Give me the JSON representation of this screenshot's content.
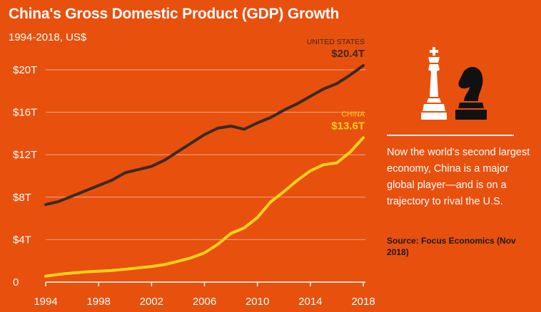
{
  "header": {
    "title": "China's Gross Domestic Product (GDP) Growth",
    "subtitle": "1994-2018, US$"
  },
  "sidebar": {
    "blurb": "Now the world's second largest economy, China is a major global player—and is on a trajectory to rival the U.S.",
    "source": "Source: Focus Economics (Nov 2018)",
    "icons": [
      "chess-king-icon",
      "chess-knight-icon"
    ]
  },
  "colors": {
    "background": "#E8500E",
    "us_line": "#3A2A22",
    "china_line": "#FFD21C",
    "text": "#FFFFFF"
  },
  "chart_data": {
    "type": "line",
    "title": "China's Gross Domestic Product (GDP) Growth",
    "subtitle": "1994-2018, US$",
    "xlabel": "",
    "ylabel": "",
    "xlim": [
      1994,
      2018
    ],
    "ylim": [
      0,
      20
    ],
    "x_ticks": [
      1994,
      1998,
      2002,
      2006,
      2010,
      2014,
      2018
    ],
    "x_tick_labels": [
      "1994",
      "1998",
      "2002",
      "2006",
      "2010",
      "2014",
      "2018"
    ],
    "y_ticks": [
      0,
      4,
      8,
      12,
      16,
      20
    ],
    "y_tick_labels": [
      "0",
      "$4T",
      "$8T",
      "$12T",
      "$16T",
      "$20T"
    ],
    "grid": true,
    "series": [
      {
        "name": "UNITED STATES",
        "label_value": "$20.4T",
        "color": "#3A2A22",
        "x": [
          1994,
          1995,
          1996,
          1997,
          1998,
          1999,
          2000,
          2001,
          2002,
          2003,
          2004,
          2005,
          2006,
          2007,
          2008,
          2009,
          2010,
          2011,
          2012,
          2013,
          2014,
          2015,
          2016,
          2017,
          2018
        ],
        "values": [
          7.3,
          7.6,
          8.1,
          8.6,
          9.1,
          9.6,
          10.3,
          10.6,
          10.9,
          11.5,
          12.3,
          13.1,
          13.9,
          14.5,
          14.7,
          14.4,
          15.0,
          15.5,
          16.2,
          16.8,
          17.5,
          18.2,
          18.7,
          19.5,
          20.4
        ]
      },
      {
        "name": "CHINA",
        "label_value": "$13.6T",
        "color": "#FFD21C",
        "x": [
          1994,
          1995,
          1996,
          1997,
          1998,
          1999,
          2000,
          2001,
          2002,
          2003,
          2004,
          2005,
          2006,
          2007,
          2008,
          2009,
          2010,
          2011,
          2012,
          2013,
          2014,
          2015,
          2016,
          2017,
          2018
        ],
        "values": [
          0.56,
          0.73,
          0.86,
          0.96,
          1.03,
          1.09,
          1.21,
          1.34,
          1.47,
          1.66,
          1.96,
          2.29,
          2.75,
          3.55,
          4.59,
          5.1,
          6.09,
          7.55,
          8.53,
          9.57,
          10.48,
          11.06,
          11.23,
          12.24,
          13.6
        ]
      }
    ]
  }
}
